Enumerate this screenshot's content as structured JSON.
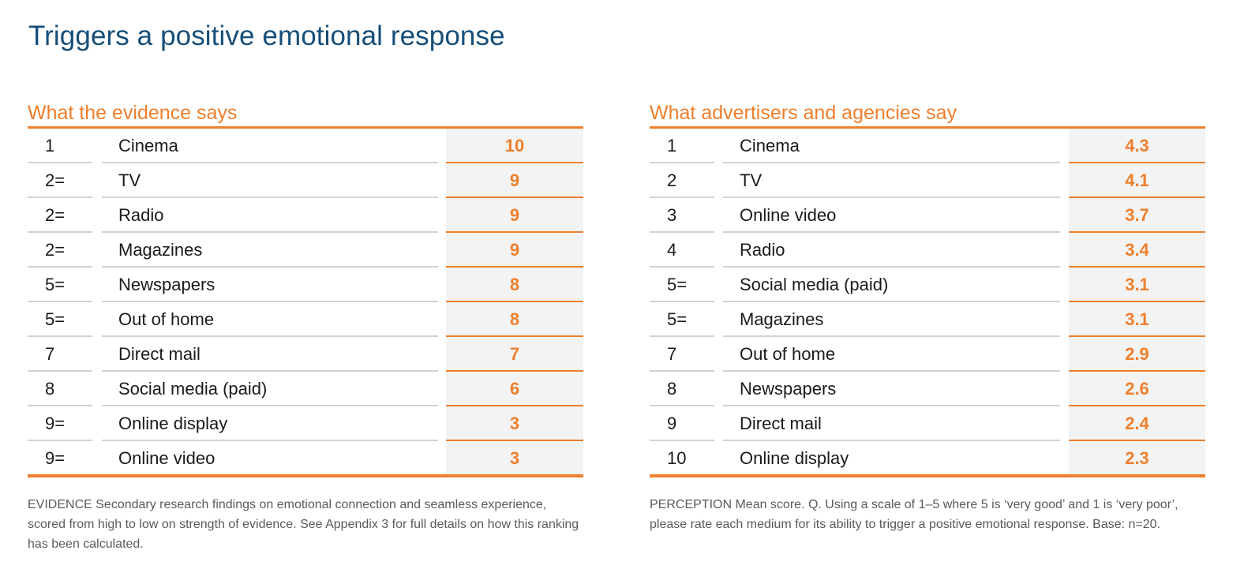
{
  "title": "Triggers a positive emotional response",
  "left_panel": {
    "heading": "What the evidence says",
    "rows": [
      {
        "rank": "1",
        "medium": "Cinema",
        "score": "10"
      },
      {
        "rank": "2=",
        "medium": "TV",
        "score": "9"
      },
      {
        "rank": "2=",
        "medium": "Radio",
        "score": "9"
      },
      {
        "rank": "2=",
        "medium": "Magazines",
        "score": "9"
      },
      {
        "rank": "5=",
        "medium": "Newspapers",
        "score": "8"
      },
      {
        "rank": "5=",
        "medium": "Out of home",
        "score": "8"
      },
      {
        "rank": "7",
        "medium": "Direct mail",
        "score": "7"
      },
      {
        "rank": "8",
        "medium": "Social media (paid)",
        "score": "6"
      },
      {
        "rank": "9=",
        "medium": "Online display",
        "score": "3"
      },
      {
        "rank": "9=",
        "medium": "Online video",
        "score": "3"
      }
    ],
    "footnote_keyword": "EVIDENCE",
    "footnote_text": " Secondary research findings on emotional connection and seamless experience, scored from high to low on strength of evidence. See Appendix 3 for full details on how this ranking has been calculated."
  },
  "right_panel": {
    "heading": "What advertisers and agencies say",
    "rows": [
      {
        "rank": "1",
        "medium": "Cinema",
        "score": "4.3"
      },
      {
        "rank": "2",
        "medium": "TV",
        "score": "4.1"
      },
      {
        "rank": "3",
        "medium": "Online video",
        "score": "3.7"
      },
      {
        "rank": "4",
        "medium": "Radio",
        "score": "3.4"
      },
      {
        "rank": "5=",
        "medium": "Social media (paid)",
        "score": "3.1"
      },
      {
        "rank": "5=",
        "medium": "Magazines",
        "score": "3.1"
      },
      {
        "rank": "7",
        "medium": "Out of home",
        "score": "2.9"
      },
      {
        "rank": "8",
        "medium": "Newspapers",
        "score": "2.6"
      },
      {
        "rank": "9",
        "medium": "Direct mail",
        "score": "2.4"
      },
      {
        "rank": "10",
        "medium": "Online display",
        "score": "2.3"
      }
    ],
    "footnote_keyword": "PERCEPTION",
    "footnote_text": " Mean score. Q. Using a scale of 1–5 where 5 is ‘very good’ and 1 is ‘very poor’, please rate each medium for its ability to trigger a positive emotional response. Base: n=20."
  },
  "colors": {
    "title": "#164e79",
    "accent": "#ee7f2d",
    "row_divider": "#d2d2d2",
    "value_band": "#f3f3f3"
  }
}
